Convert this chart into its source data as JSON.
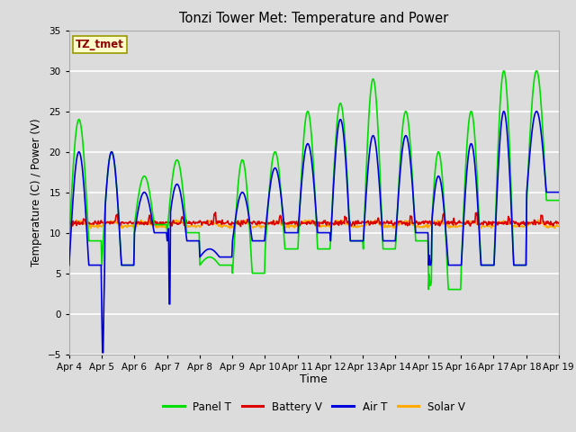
{
  "title": "Tonzi Tower Met: Temperature and Power",
  "xlabel": "Time",
  "ylabel": "Temperature (C) / Power (V)",
  "ylim": [
    -5,
    35
  ],
  "yticks": [
    -5,
    0,
    5,
    10,
    15,
    20,
    25,
    30,
    35
  ],
  "bg_color": "#dcdcdc",
  "annotation_text": "TZ_tmet",
  "annotation_color": "#8b0000",
  "annotation_bg": "#ffffcc",
  "annotation_border": "#999900",
  "legend_entries": [
    "Panel T",
    "Battery V",
    "Air T",
    "Solar V"
  ],
  "legend_colors": [
    "#00dd00",
    "#dd0000",
    "#0000dd",
    "#ffaa00"
  ],
  "line_width": 1.2,
  "xtick_labels": [
    "Apr 4",
    "Apr 5",
    "Apr 6",
    "Apr 7",
    "Apr 8",
    "Apr 9",
    "Apr 10",
    "Apr 11",
    "Apr 12",
    "Apr 13",
    "Apr 14",
    "Apr 15",
    "Apr 16",
    "Apr 17",
    "Apr 18",
    "Apr 19"
  ],
  "n_days": 15,
  "ppd": 48
}
